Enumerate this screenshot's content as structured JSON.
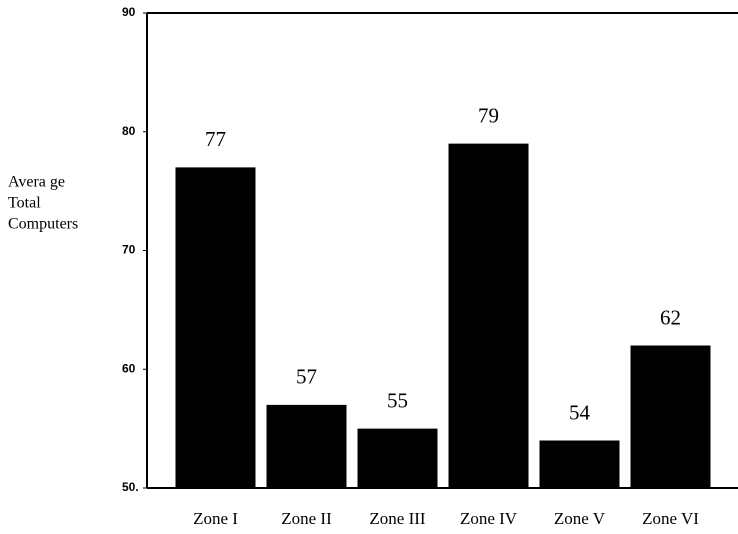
{
  "chart_data": {
    "type": "bar",
    "y_label": [
      "Avera ge",
      "Total",
      "Computers"
    ],
    "categories": [
      "Zone I",
      "Zone II",
      "Zone III",
      "Zone IV",
      "Zone V",
      "Zone VI"
    ],
    "values": [
      77,
      57,
      55,
      79,
      54,
      62
    ],
    "color": "#000000",
    "ylim": [
      50,
      90
    ],
    "yticks": [
      {
        "value": 50,
        "label": "50."
      },
      60,
      70,
      80,
      90
    ],
    "grid": false
  }
}
